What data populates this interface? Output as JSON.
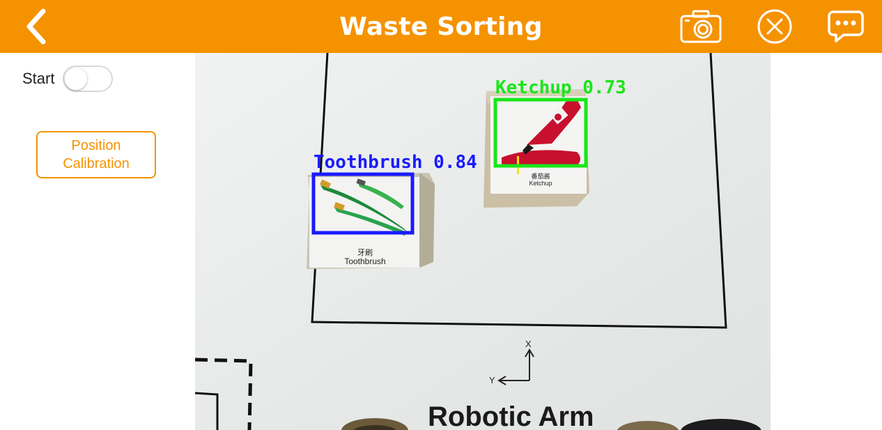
{
  "header": {
    "title": "Waste Sorting",
    "back_icon": "chevron-left-icon",
    "icons": [
      "camera-icon",
      "close-circle-icon",
      "chat-icon"
    ],
    "bar_color": "#F59200"
  },
  "sidebar": {
    "start_label": "Start",
    "start_toggle_on": false,
    "calibration_button": "Position\nCalibration"
  },
  "camera_view": {
    "detections": [
      {
        "label": "Toothbrush 0.84",
        "color": "#1a1aff"
      },
      {
        "label": "Ketchup 0.73",
        "color": "#19e619"
      }
    ],
    "cards": [
      {
        "cn": "牙刷",
        "en": "Toothbrush"
      },
      {
        "cn": "番茄酱",
        "en": "Ketchup"
      }
    ],
    "axis_x": "X",
    "axis_y": "Y",
    "floor_text": "Robotic Arm"
  }
}
